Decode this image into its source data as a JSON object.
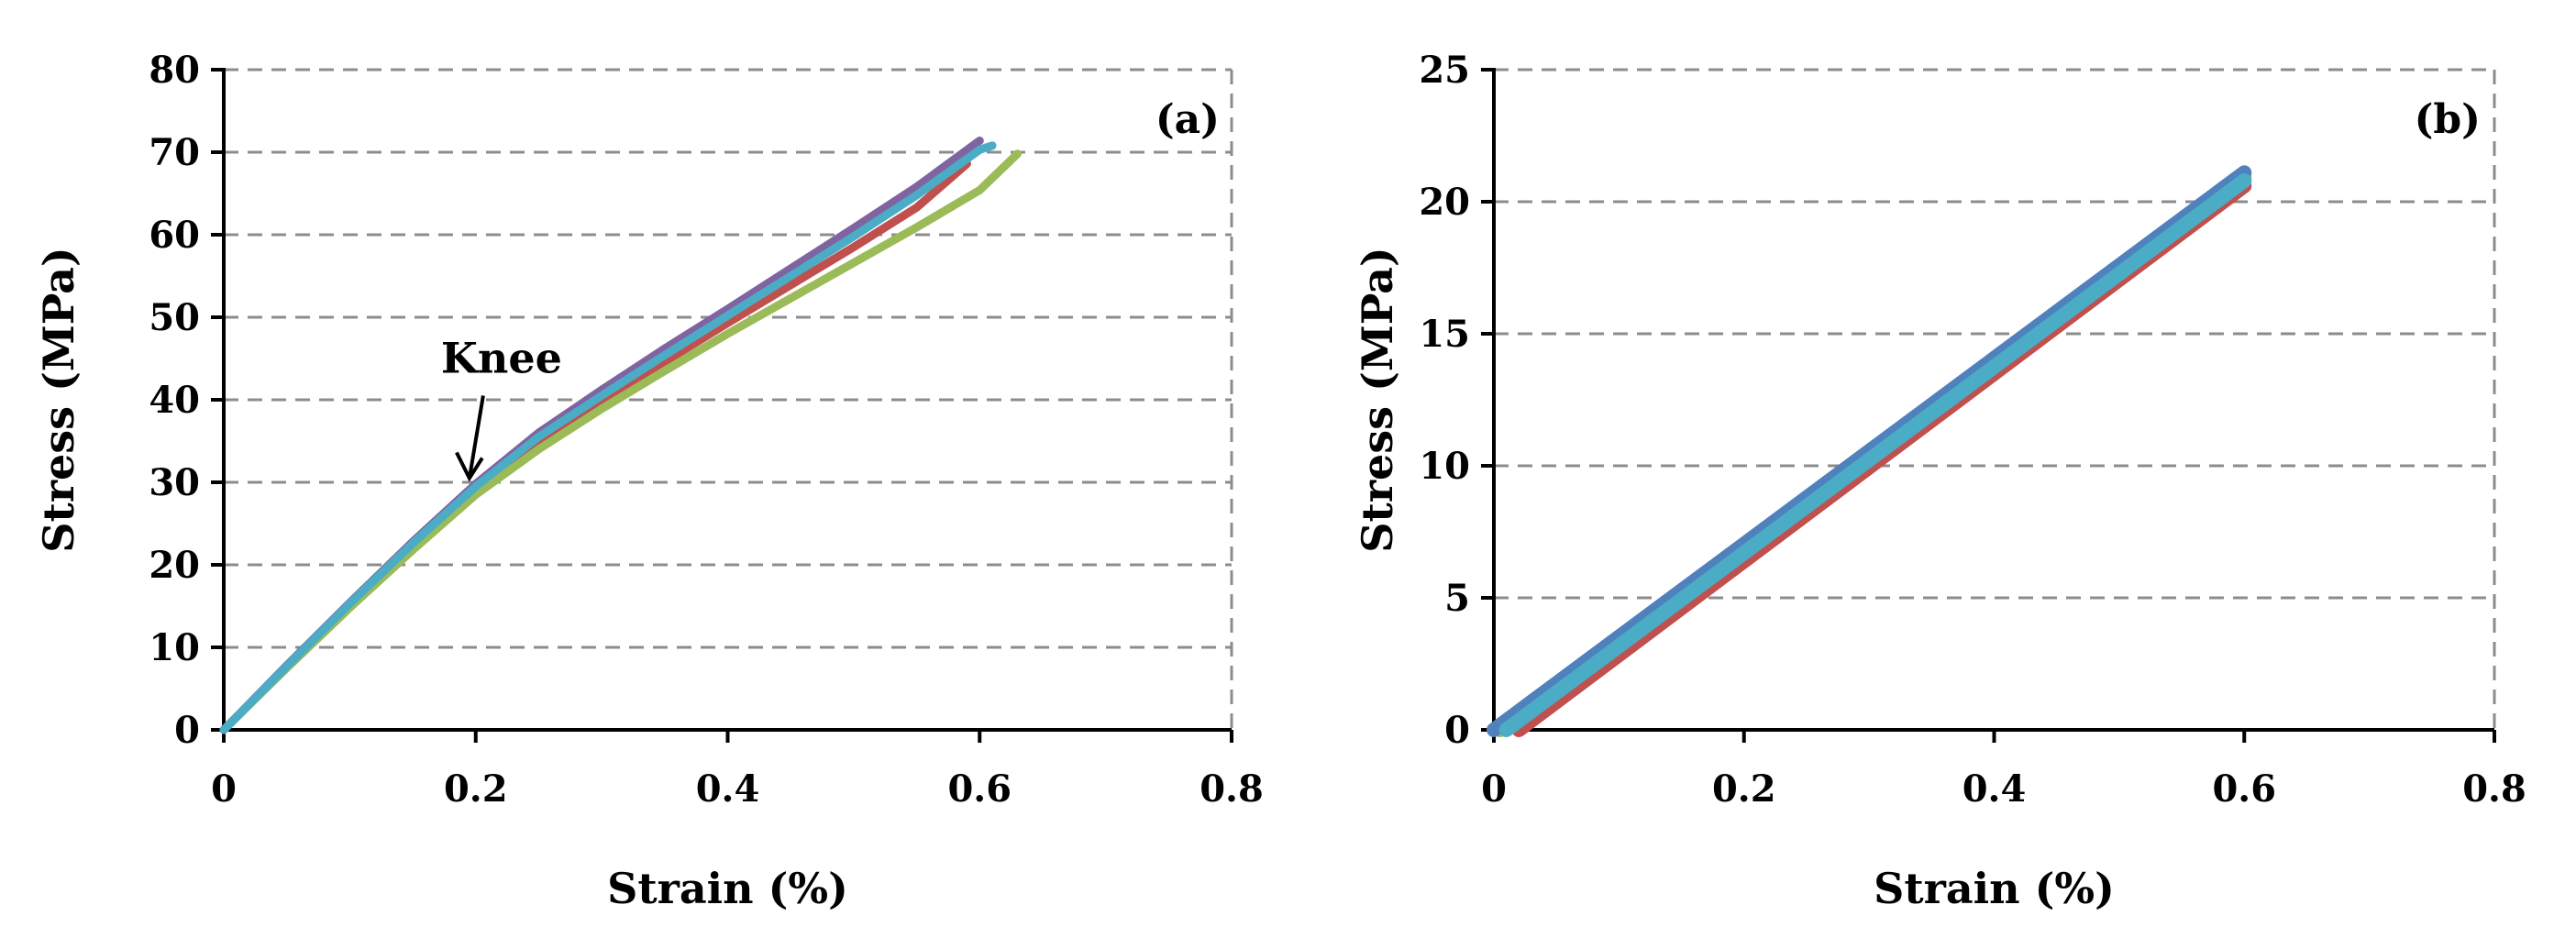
{
  "chart_data": [
    {
      "type": "line",
      "panel_label": "(a)",
      "xlabel": "Strain (%)",
      "ylabel": "Stress (MPa)",
      "xlim": [
        0,
        0.8
      ],
      "ylim": [
        0,
        80
      ],
      "xticks": [
        "0",
        "0.2",
        "0.4",
        "0.6",
        "0.8"
      ],
      "yticks": [
        "0",
        "10",
        "20",
        "30",
        "40",
        "50",
        "60",
        "70",
        "80"
      ],
      "grid": "horizontal dashed",
      "annotation": {
        "text": "Knee",
        "x": 0.195,
        "y": 30.5
      },
      "series": [
        {
          "color": "#c0504d",
          "points": [
            [
              0,
              0
            ],
            [
              0.05,
              7.7
            ],
            [
              0.1,
              15.2
            ],
            [
              0.15,
              22.4
            ],
            [
              0.2,
              29.3
            ],
            [
              0.25,
              35.0
            ],
            [
              0.3,
              39.8
            ],
            [
              0.35,
              44.6
            ],
            [
              0.4,
              49.3
            ],
            [
              0.45,
              53.9
            ],
            [
              0.5,
              58.5
            ],
            [
              0.55,
              63.3
            ],
            [
              0.59,
              68.6
            ]
          ]
        },
        {
          "color": "#9bbb59",
          "points": [
            [
              0,
              0
            ],
            [
              0.05,
              7.5
            ],
            [
              0.1,
              14.8
            ],
            [
              0.15,
              21.8
            ],
            [
              0.2,
              28.5
            ],
            [
              0.25,
              34.0
            ],
            [
              0.3,
              38.9
            ],
            [
              0.35,
              43.5
            ],
            [
              0.4,
              48.0
            ],
            [
              0.45,
              52.3
            ],
            [
              0.5,
              56.6
            ],
            [
              0.55,
              60.9
            ],
            [
              0.6,
              65.4
            ],
            [
              0.63,
              69.8
            ]
          ]
        },
        {
          "color": "#8064a2",
          "points": [
            [
              0,
              0
            ],
            [
              0.05,
              7.8
            ],
            [
              0.1,
              15.4
            ],
            [
              0.15,
              22.8
            ],
            [
              0.2,
              29.8
            ],
            [
              0.25,
              36.0
            ],
            [
              0.3,
              41.2
            ],
            [
              0.35,
              46.2
            ],
            [
              0.4,
              51.0
            ],
            [
              0.45,
              55.9
            ],
            [
              0.5,
              60.8
            ],
            [
              0.55,
              65.8
            ],
            [
              0.6,
              71.4
            ]
          ]
        },
        {
          "color": "#4bacc6",
          "points": [
            [
              0,
              0
            ],
            [
              0.05,
              7.7
            ],
            [
              0.1,
              15.3
            ],
            [
              0.15,
              22.6
            ],
            [
              0.2,
              29.5
            ],
            [
              0.25,
              35.5
            ],
            [
              0.3,
              40.5
            ],
            [
              0.35,
              45.4
            ],
            [
              0.4,
              50.2
            ],
            [
              0.45,
              55.0
            ],
            [
              0.5,
              59.8
            ],
            [
              0.55,
              64.8
            ],
            [
              0.6,
              70.3
            ],
            [
              0.61,
              70.8
            ]
          ]
        }
      ]
    },
    {
      "type": "line",
      "panel_label": "(b)",
      "xlabel": "Strain (%)",
      "ylabel": "Stress (MPa)",
      "xlim": [
        0,
        0.8
      ],
      "ylim": [
        0,
        25
      ],
      "xticks": [
        "0",
        "0.2",
        "0.4",
        "0.6",
        "0.8"
      ],
      "yticks": [
        "0",
        "5",
        "10",
        "15",
        "20",
        "25"
      ],
      "grid": "horizontal dashed",
      "series": [
        {
          "color": "#c0504d",
          "points": [
            [
              0.02,
              0
            ],
            [
              0.6,
              20.6
            ]
          ]
        },
        {
          "color": "#9bbb59",
          "points": [
            [
              0.005,
              0
            ],
            [
              0.6,
              20.9
            ]
          ]
        },
        {
          "color": "#4f81bd",
          "points": [
            [
              0,
              0
            ],
            [
              0.6,
              21.1
            ]
          ]
        },
        {
          "color": "#4bacc6",
          "points": [
            [
              0.01,
              0
            ],
            [
              0.6,
              20.8
            ]
          ]
        }
      ]
    }
  ]
}
